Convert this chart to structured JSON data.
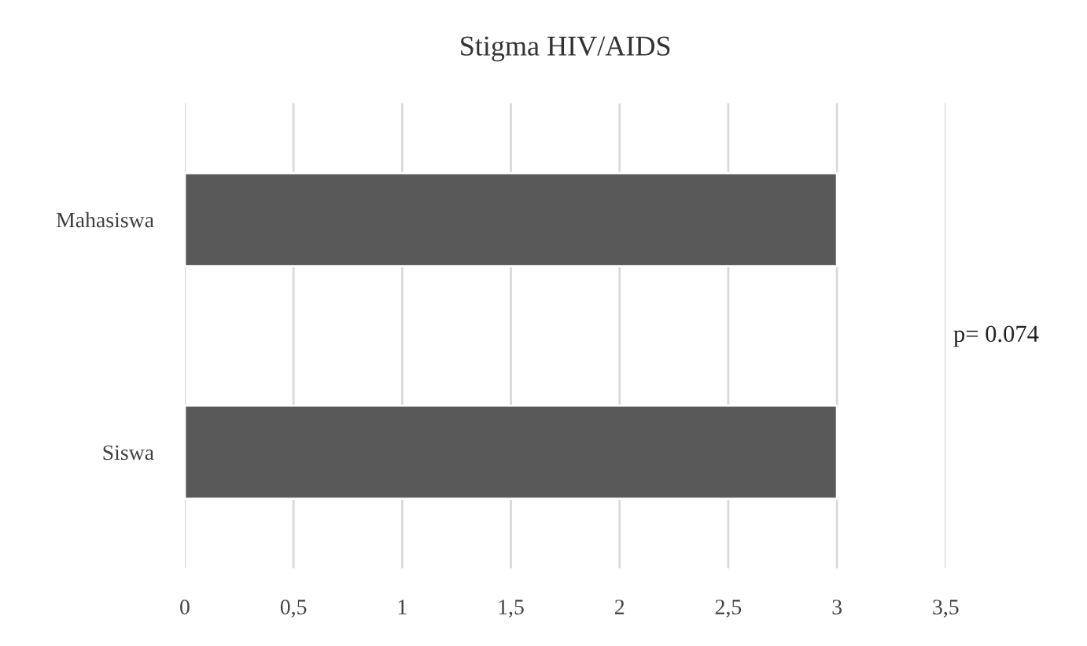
{
  "chart_data": {
    "type": "bar",
    "orientation": "horizontal",
    "title": "Stigma HIV/AIDS",
    "categories": [
      "Mahasiswa",
      "Siswa"
    ],
    "values": [
      3,
      3
    ],
    "color": "#595959",
    "xlim": [
      0,
      3.5
    ],
    "xticks": [
      0,
      {
        "value": 0.5,
        "label": "0,5"
      },
      1,
      {
        "value": 1.5,
        "label": "1,5"
      },
      2,
      {
        "value": 2.5,
        "label": "2,5"
      },
      3,
      {
        "value": 3.5,
        "label": "3,5"
      }
    ],
    "grid": "x",
    "annotations": [
      "p= 0.074"
    ]
  }
}
